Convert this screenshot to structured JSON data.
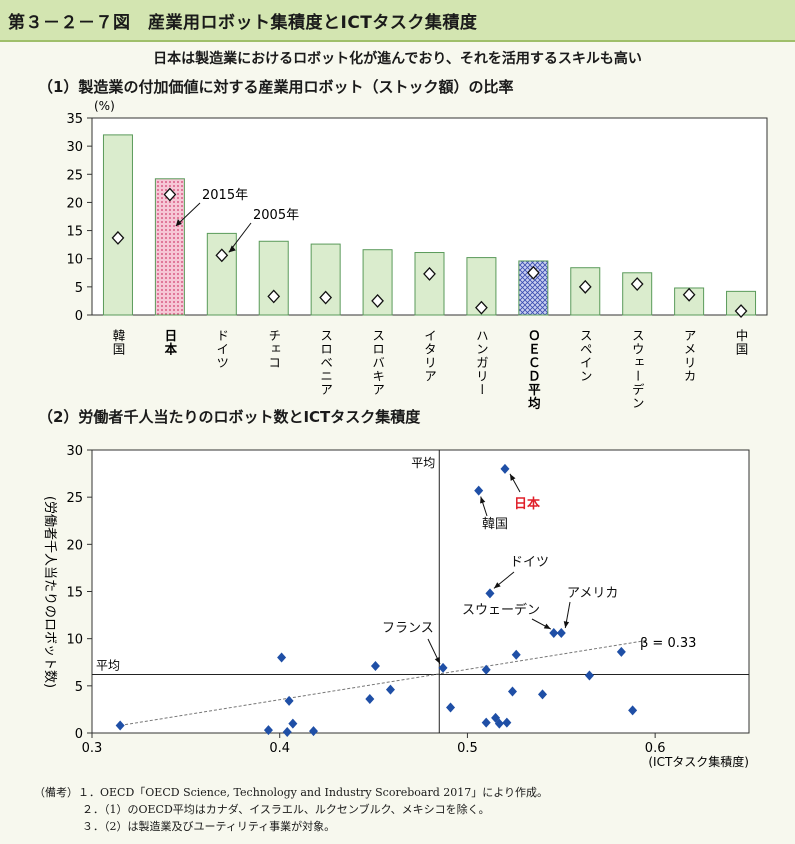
{
  "header": {
    "title": "第３－２－７図　産業用ロボット集積度とICTタスク集積度"
  },
  "subtitle": "日本は製造業におけるロボット化が進んでおり、それを活用するスキルも高い",
  "panel1": {
    "title": "（1）製造業の付加価値に対する産業用ロボット（ストック額）の比率"
  },
  "panel2": {
    "title": "（2）労働者千人当たりのロボット数とICTタスク集積度"
  },
  "notes": [
    "（備考）１．OECD「OECD Science, Technology and Industry Scoreboard 2017」により作成。",
    "２．（1）のOECD平均はカナダ、イスラエル、ルクセンブルク、メキシコを除く。",
    "３．（2）は製造業及びユーティリティ事業が対象。"
  ],
  "chart_data": [
    {
      "type": "bar",
      "ylabel": "(%)",
      "ylim": [
        0,
        35
      ],
      "yticks": [
        0,
        5,
        10,
        15,
        20,
        25,
        30,
        35
      ],
      "categories": [
        "韓国",
        "日本",
        "ドイツ",
        "チェコ",
        "スロベニア",
        "スロバキア",
        "イタリア",
        "ハンガリー",
        "ＯＥＣＤ平均",
        "スペイン",
        "スウェーデン",
        "アメリカ",
        "中国"
      ],
      "bold_categories": [
        "日本",
        "ＯＥＣＤ平均"
      ],
      "series": [
        {
          "name": "2015年",
          "values": [
            32.0,
            24.2,
            14.5,
            13.1,
            12.6,
            11.6,
            11.1,
            10.2,
            9.6,
            8.4,
            7.5,
            4.8,
            4.2
          ]
        },
        {
          "name": "2005年",
          "values": [
            13.7,
            21.4,
            10.6,
            3.3,
            3.1,
            2.5,
            7.3,
            1.3,
            7.5,
            5.0,
            5.5,
            3.6,
            0.7
          ]
        }
      ],
      "colors": {
        "bar": "#daeccd",
        "bar_border": "#5a9a5a",
        "japan_fill": "#f6c7d6",
        "japan_pattern": "#d0406e",
        "oecd_fill": "#c9cff0",
        "oecd_pattern": "#3a4db0"
      },
      "annotations": [
        "2015年",
        "2005年"
      ]
    },
    {
      "type": "scatter",
      "xlabel": "(ICTタスク集積度)",
      "ylabel": "(労働者千人当たりのロボット数)",
      "xlim": [
        0.3,
        0.65
      ],
      "ylim": [
        0,
        30
      ],
      "xticks": [
        0.3,
        0.4,
        0.5,
        0.6
      ],
      "yticks": [
        0,
        5,
        10,
        15,
        20,
        25,
        30
      ],
      "mean_x": 0.485,
      "mean_y": 6.2,
      "mean_labels": [
        "平均",
        "平均"
      ],
      "trend": {
        "from": [
          0.315,
          0.8
        ],
        "to": [
          0.595,
          9.8
        ],
        "label": "β = 0.33"
      },
      "points": [
        {
          "x": 0.315,
          "y": 0.8
        },
        {
          "x": 0.394,
          "y": 0.3
        },
        {
          "x": 0.401,
          "y": 8.0
        },
        {
          "x": 0.404,
          "y": 0.1
        },
        {
          "x": 0.405,
          "y": 3.4
        },
        {
          "x": 0.407,
          "y": 1.0
        },
        {
          "x": 0.418,
          "y": 0.2
        },
        {
          "x": 0.448,
          "y": 3.6
        },
        {
          "x": 0.451,
          "y": 7.1
        },
        {
          "x": 0.459,
          "y": 4.6
        },
        {
          "x": 0.487,
          "y": 6.9
        },
        {
          "x": 0.491,
          "y": 2.7
        },
        {
          "x": 0.506,
          "y": 25.7
        },
        {
          "x": 0.51,
          "y": 6.7
        },
        {
          "x": 0.51,
          "y": 1.1
        },
        {
          "x": 0.512,
          "y": 14.8
        },
        {
          "x": 0.515,
          "y": 1.6
        },
        {
          "x": 0.517,
          "y": 1.0
        },
        {
          "x": 0.52,
          "y": 28.0
        },
        {
          "x": 0.521,
          "y": 1.1
        },
        {
          "x": 0.524,
          "y": 4.4
        },
        {
          "x": 0.526,
          "y": 8.3
        },
        {
          "x": 0.54,
          "y": 4.1
        },
        {
          "x": 0.546,
          "y": 10.6
        },
        {
          "x": 0.55,
          "y": 10.6
        },
        {
          "x": 0.565,
          "y": 6.1
        },
        {
          "x": 0.582,
          "y": 8.6
        },
        {
          "x": 0.588,
          "y": 2.4
        }
      ],
      "labels": [
        "日本",
        "韓国",
        "ドイツ",
        "アメリカ",
        "スウェーデン",
        "フランス"
      ],
      "colors": {
        "point": "#1f4fa6",
        "japan_label": "#e0202a",
        "trend": "#777777"
      }
    }
  ]
}
